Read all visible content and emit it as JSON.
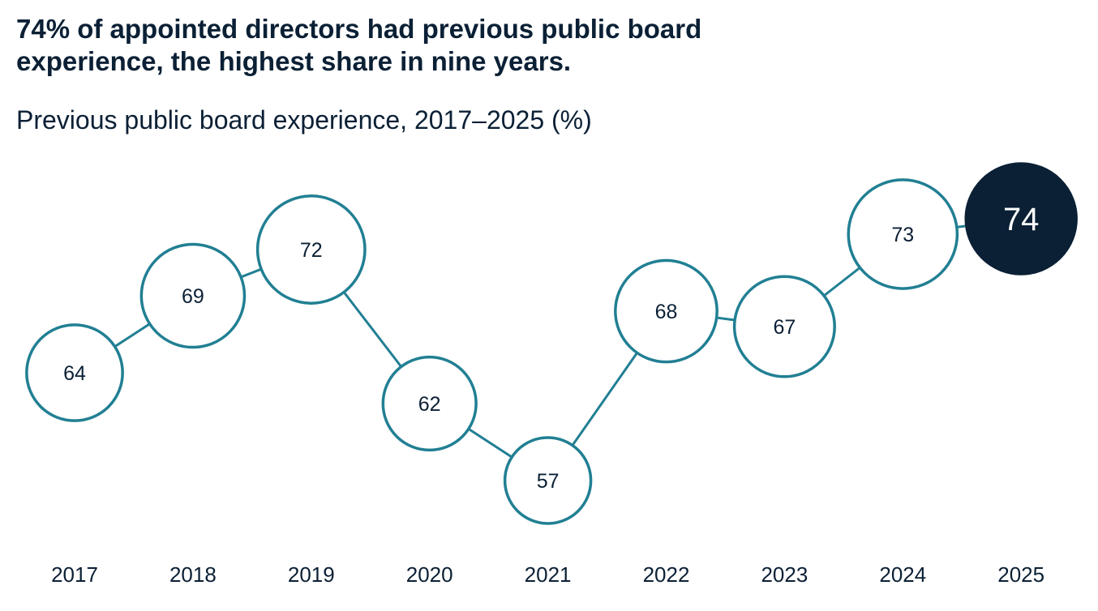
{
  "chart_data": {
    "type": "line",
    "title": "74% of appointed directors had previous public board experience, the highest share in nine years.",
    "subtitle": "Previous public board experience, 2017–2025 (%)",
    "categories": [
      "2017",
      "2018",
      "2019",
      "2020",
      "2021",
      "2022",
      "2023",
      "2024",
      "2025"
    ],
    "values": [
      64,
      69,
      72,
      62,
      57,
      68,
      67,
      73,
      74
    ],
    "highlight": "2025",
    "xlabel": "",
    "ylabel": "",
    "grid": false,
    "colors": {
      "line": "#217f93",
      "highlight": "#0b2035",
      "text": "#0b2035"
    }
  }
}
